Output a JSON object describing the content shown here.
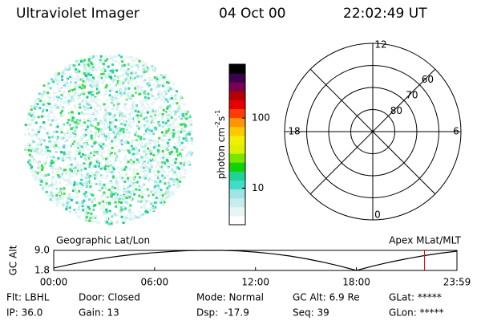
{
  "header": {
    "instrument": "Ultraviolet Imager",
    "date": "04 Oct 00",
    "time": "22:02:49 UT"
  },
  "colorbar": {
    "label": "photon cm",
    "exp1": "-2",
    "unit2": "s",
    "exp2": "-1",
    "lim": [
      3,
      590
    ],
    "log": true,
    "ticks": [
      10,
      100
    ],
    "colors": [
      "#ffffff",
      "#e6f5f5",
      "#c8ecec",
      "#a0e4e4",
      "#40dcc8",
      "#20d296",
      "#10d200",
      "#78e600",
      "#dcf000",
      "#f0f000",
      "#ffc800",
      "#ff9600",
      "#ff3c00",
      "#e60000",
      "#b40000",
      "#780050",
      "#3c0050",
      "#000000"
    ]
  },
  "polar": {
    "lat_min": 50,
    "circles": [
      80,
      70,
      60
    ],
    "mlt_labels": {
      "top": "12",
      "left": "18",
      "right": "6",
      "bottom": "0"
    }
  },
  "chart_data": {
    "type": "line",
    "ylabel": "GC Alt",
    "left_title": "Geographic Lat/Lon",
    "right_title": "Apex MLat/MLT",
    "x": [
      0,
      1,
      2,
      3,
      4,
      5,
      6,
      7,
      8,
      9,
      10,
      11,
      12,
      13,
      14,
      15,
      16,
      17,
      18,
      19,
      20,
      21,
      22,
      23,
      23.98
    ],
    "values": [
      2.7,
      4.0,
      5.2,
      6.2,
      7.0,
      7.7,
      8.2,
      8.6,
      8.9,
      9.0,
      9.0,
      8.8,
      8.4,
      7.8,
      7.0,
      6.0,
      4.8,
      3.4,
      1.8,
      3.4,
      4.8,
      6.0,
      7.1,
      8.0,
      8.7
    ],
    "color": "#000000",
    "xlim": [
      0,
      23.98
    ],
    "xticks": [
      {
        "value": 0,
        "label": "00:00"
      },
      {
        "value": 6,
        "label": "06:00"
      },
      {
        "value": 12,
        "label": "12:00"
      },
      {
        "value": 18,
        "label": "18:00"
      },
      {
        "value": 23.98,
        "label": "23:59"
      }
    ],
    "ylim": [
      1.8,
      9.0
    ],
    "yticks": [
      1.8,
      {
        "value": 9,
        "label": "9.0"
      }
    ],
    "markers": [
      {
        "x": 22.05,
        "color": "#ff0000"
      }
    ]
  },
  "info": [
    [
      "Flt: LBHL",
      "Door: Closed",
      "Mode: Normal",
      "GC Alt: 6.9 Re",
      "GLat: *****"
    ],
    [
      "IP: 36.0",
      "Gain: 13",
      "Dsp:  -17.9",
      "Seq: 39",
      "GLon: *****"
    ]
  ]
}
